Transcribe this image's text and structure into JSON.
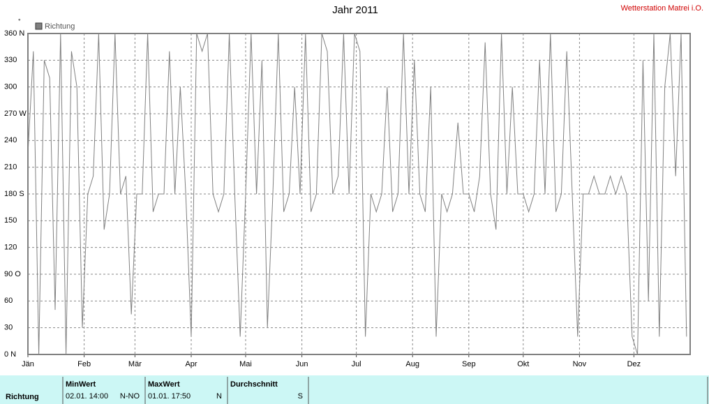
{
  "chart_data": {
    "type": "line",
    "title": "Jahr 2011",
    "station": "Wetterstation Matrei i.O.",
    "unit": "°",
    "xlim": [
      0,
      365
    ],
    "xticks": [
      {
        "value": 0,
        "label": "Jän"
      },
      {
        "value": 31,
        "label": "Feb"
      },
      {
        "value": 59,
        "label": "Mär"
      },
      {
        "value": 90,
        "label": "Apr"
      },
      {
        "value": 120,
        "label": "Mai"
      },
      {
        "value": 151,
        "label": "Jun"
      },
      {
        "value": 181,
        "label": "Jul"
      },
      {
        "value": 212,
        "label": "Aug"
      },
      {
        "value": 243,
        "label": "Sep"
      },
      {
        "value": 273,
        "label": "Okt"
      },
      {
        "value": 304,
        "label": "Nov"
      },
      {
        "value": 334,
        "label": "Dez"
      }
    ],
    "ylim": [
      0,
      360
    ],
    "yticks": [
      {
        "value": 0,
        "label": "0  N"
      },
      30,
      60,
      {
        "value": 90,
        "label": "90  O"
      },
      120,
      150,
      {
        "value": 180,
        "label": "180 S"
      },
      210,
      240,
      {
        "value": 270,
        "label": "270 W"
      },
      300,
      330,
      {
        "value": 360,
        "label": "360 N"
      }
    ],
    "grid": true,
    "x": [
      0,
      3,
      6,
      9,
      12,
      15,
      18,
      21,
      24,
      27,
      30,
      33,
      36,
      39,
      42,
      45,
      48,
      51,
      54,
      57,
      60,
      63,
      66,
      69,
      72,
      75,
      78,
      81,
      84,
      87,
      90,
      93,
      96,
      99,
      102,
      105,
      108,
      111,
      114,
      117,
      120,
      123,
      126,
      129,
      132,
      135,
      138,
      141,
      144,
      147,
      150,
      153,
      156,
      159,
      162,
      165,
      168,
      171,
      174,
      177,
      180,
      183,
      186,
      189,
      192,
      195,
      198,
      201,
      204,
      207,
      210,
      213,
      216,
      219,
      222,
      225,
      228,
      231,
      234,
      237,
      240,
      243,
      246,
      249,
      252,
      255,
      258,
      261,
      264,
      267,
      270,
      273,
      276,
      279,
      282,
      285,
      288,
      291,
      294,
      297,
      300,
      303,
      306,
      309,
      312,
      315,
      318,
      321,
      324,
      327,
      330,
      333,
      336,
      339,
      342,
      345,
      348,
      351,
      354,
      357,
      360,
      363
    ],
    "series": [
      {
        "name": "Richtung",
        "color": "#808080",
        "values": [
          225,
          340,
          0,
          330,
          310,
          50,
          360,
          0,
          340,
          300,
          30,
          180,
          200,
          360,
          140,
          180,
          360,
          180,
          200,
          45,
          180,
          180,
          360,
          160,
          180,
          180,
          340,
          180,
          300,
          180,
          20,
          360,
          340,
          360,
          180,
          160,
          180,
          360,
          180,
          20,
          180,
          360,
          180,
          330,
          30,
          180,
          360,
          160,
          180,
          300,
          180,
          360,
          160,
          180,
          360,
          340,
          180,
          200,
          360,
          180,
          360,
          340,
          20,
          180,
          160,
          180,
          300,
          160,
          180,
          360,
          180,
          330,
          180,
          160,
          300,
          20,
          180,
          160,
          180,
          260,
          180,
          180,
          160,
          200,
          350,
          180,
          140,
          360,
          180,
          300,
          180,
          180,
          160,
          180,
          330,
          180,
          360,
          160,
          180,
          340,
          180,
          20,
          180,
          180,
          200,
          180,
          180,
          200,
          180,
          200,
          180,
          20,
          0,
          330,
          60,
          360,
          20,
          300,
          360,
          200,
          360,
          20
        ]
      }
    ],
    "table": {
      "row_label": "Richtung",
      "columns": [
        {
          "header": "MinWert",
          "time": "02.01.  14:00",
          "value": "N-NO"
        },
        {
          "header": "MaxWert",
          "time": "01.01.  17:50",
          "value": "N"
        },
        {
          "header": "Durchschnitt",
          "time": "",
          "value": "S"
        }
      ]
    }
  }
}
